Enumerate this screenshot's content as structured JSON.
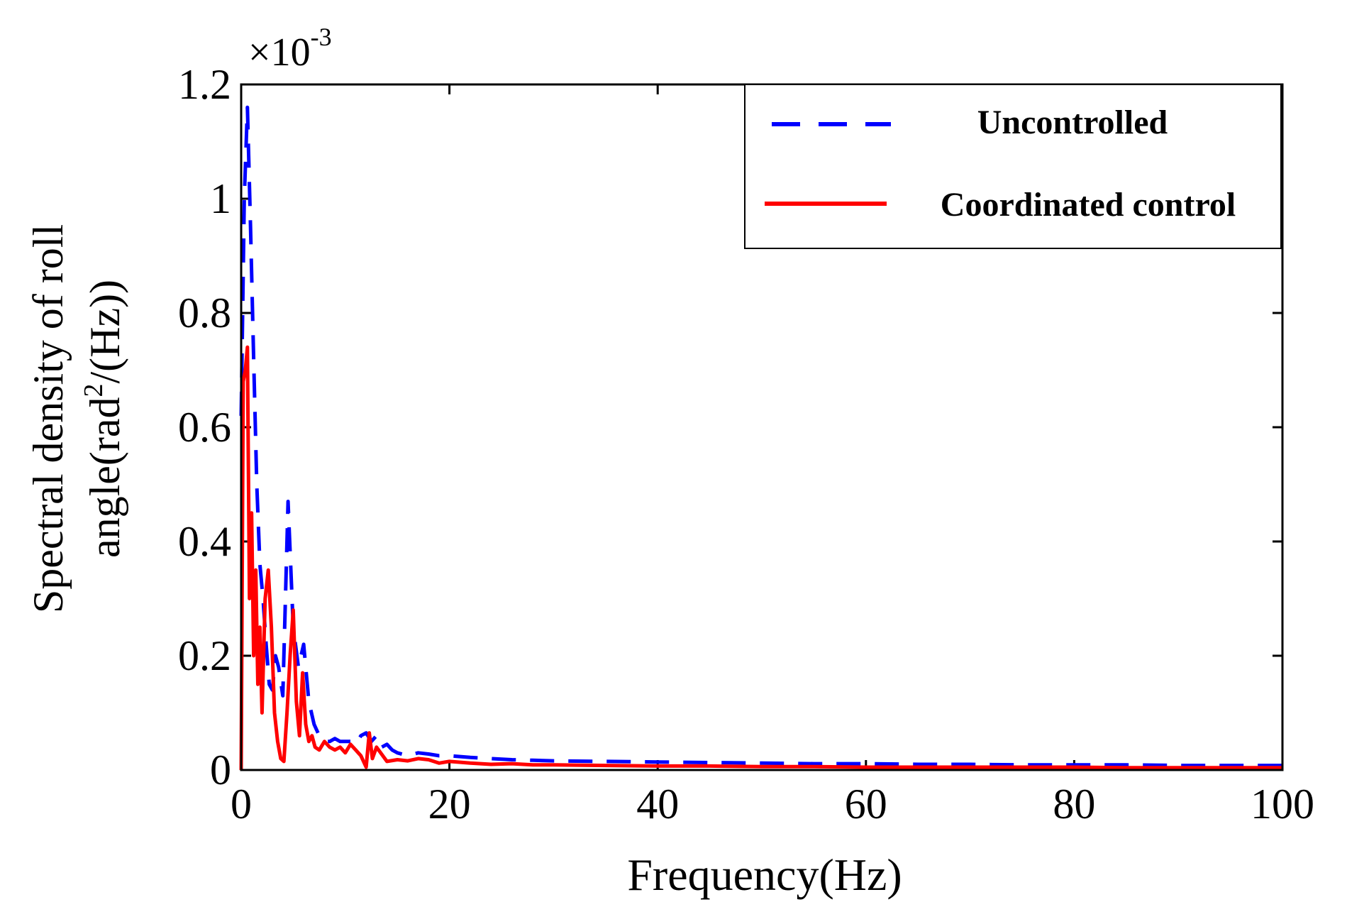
{
  "chart_data": {
    "type": "line",
    "title": "",
    "xlabel": "Frequency(Hz)",
    "ylabel_line1": "Spectral density of roll",
    "ylabel_line2_prefix": "angle(rad",
    "ylabel_line2_sup": "2",
    "ylabel_line2_suffix": "/(Hz))",
    "y_multiplier_base": "×10",
    "y_multiplier_exp": "-3",
    "xlim": [
      0,
      100
    ],
    "ylim": [
      0,
      1.2
    ],
    "xticks": [
      0,
      20,
      40,
      60,
      80,
      100
    ],
    "xtick_labels": [
      "0",
      "20",
      "40",
      "60",
      "80",
      "100"
    ],
    "yticks": [
      0,
      0.2,
      0.4,
      0.6,
      0.8,
      1.0,
      1.2
    ],
    "ytick_labels": [
      "0",
      "0.2",
      "0.4",
      "0.6",
      "0.8",
      "1",
      "1.2"
    ],
    "grid": false,
    "legend_position": "top-right",
    "series": [
      {
        "name": "Uncontrolled",
        "color": "#0000ff",
        "style": "dashed",
        "x": [
          0,
          0.3,
          0.6,
          0.9,
          1.2,
          1.5,
          1.8,
          2.1,
          2.4,
          2.7,
          3.0,
          3.3,
          3.6,
          4.0,
          4.5,
          5.0,
          5.5,
          6.0,
          6.5,
          7.0,
          7.5,
          8.0,
          8.5,
          9.0,
          9.5,
          10,
          10.5,
          11,
          11.5,
          12,
          12.5,
          13,
          13.5,
          14,
          14.5,
          15,
          16,
          17,
          18,
          19,
          20,
          22,
          24,
          26,
          28,
          30,
          35,
          40,
          45,
          50,
          55,
          60,
          65,
          70,
          75,
          80,
          85,
          90,
          95,
          100
        ],
        "values": [
          0.62,
          1.0,
          1.16,
          0.95,
          0.72,
          0.5,
          0.36,
          0.3,
          0.22,
          0.15,
          0.14,
          0.2,
          0.18,
          0.13,
          0.47,
          0.25,
          0.18,
          0.22,
          0.12,
          0.08,
          0.06,
          0.05,
          0.05,
          0.055,
          0.05,
          0.05,
          0.05,
          0.045,
          0.06,
          0.065,
          0.05,
          0.06,
          0.04,
          0.045,
          0.035,
          0.03,
          0.025,
          0.03,
          0.028,
          0.025,
          0.025,
          0.022,
          0.02,
          0.018,
          0.017,
          0.016,
          0.015,
          0.014,
          0.013,
          0.012,
          0.011,
          0.011,
          0.01,
          0.01,
          0.009,
          0.009,
          0.009,
          0.008,
          0.008,
          0.008
        ]
      },
      {
        "name": "Coordinated control",
        "color": "#ff0000",
        "style": "solid",
        "x": [
          0,
          0.2,
          0.4,
          0.6,
          0.8,
          1.0,
          1.2,
          1.4,
          1.6,
          1.8,
          2.0,
          2.3,
          2.6,
          2.9,
          3.2,
          3.5,
          3.8,
          4.1,
          4.4,
          4.7,
          5.0,
          5.3,
          5.6,
          5.9,
          6.2,
          6.5,
          6.8,
          7.1,
          7.5,
          8.0,
          8.5,
          9.0,
          9.5,
          10,
          10.5,
          11,
          11.5,
          12,
          12.3,
          12.6,
          13,
          14,
          15,
          16,
          17,
          18,
          19,
          20,
          22,
          24,
          26,
          28,
          30,
          35,
          40,
          45,
          50,
          55,
          60,
          65,
          70,
          75,
          80,
          85,
          90,
          95,
          100
        ],
        "values": [
          0.0,
          0.68,
          0.7,
          0.74,
          0.3,
          0.45,
          0.2,
          0.35,
          0.15,
          0.25,
          0.1,
          0.3,
          0.35,
          0.25,
          0.1,
          0.05,
          0.02,
          0.015,
          0.1,
          0.2,
          0.28,
          0.12,
          0.06,
          0.17,
          0.08,
          0.05,
          0.06,
          0.04,
          0.035,
          0.05,
          0.04,
          0.035,
          0.04,
          0.03,
          0.045,
          0.035,
          0.025,
          0.005,
          0.065,
          0.02,
          0.04,
          0.015,
          0.018,
          0.016,
          0.02,
          0.018,
          0.012,
          0.015,
          0.012,
          0.01,
          0.011,
          0.009,
          0.009,
          0.008,
          0.007,
          0.007,
          0.006,
          0.006,
          0.005,
          0.005,
          0.005,
          0.005,
          0.005,
          0.004,
          0.004,
          0.004,
          0.004
        ]
      }
    ]
  }
}
